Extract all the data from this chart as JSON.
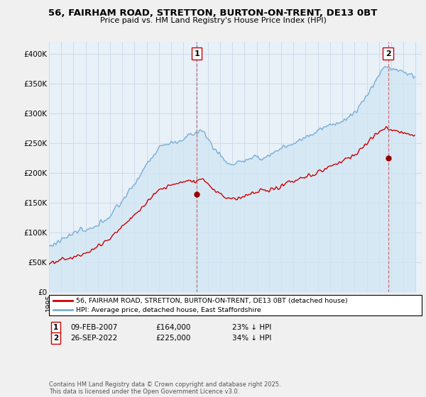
{
  "title": "56, FAIRHAM ROAD, STRETTON, BURTON-ON-TRENT, DE13 0BT",
  "subtitle": "Price paid vs. HM Land Registry's House Price Index (HPI)",
  "ylim": [
    0,
    420000
  ],
  "yticks": [
    0,
    50000,
    100000,
    150000,
    200000,
    250000,
    300000,
    350000,
    400000
  ],
  "ytick_labels": [
    "£0",
    "£50K",
    "£100K",
    "£150K",
    "£200K",
    "£250K",
    "£300K",
    "£350K",
    "£400K"
  ],
  "sale1_year": 2007.1,
  "sale1_date": "09-FEB-2007",
  "sale1_price": "£164,000",
  "sale1_price_val": 164000,
  "sale1_hpi": "23% ↓ HPI",
  "sale2_year": 2022.75,
  "sale2_date": "26-SEP-2022",
  "sale2_price": "£225,000",
  "sale2_price_val": 225000,
  "sale2_hpi": "34% ↓ HPI",
  "line_color_red": "#cc0000",
  "line_color_blue": "#7aafd4",
  "fill_color_blue": "#d0e5f5",
  "marker_color": "#990000",
  "dashed_color": "#cc6666",
  "legend_label_red": "56, FAIRHAM ROAD, STRETTON, BURTON-ON-TRENT, DE13 0BT (detached house)",
  "legend_label_blue": "HPI: Average price, detached house, East Staffordshire",
  "footer": "Contains HM Land Registry data © Crown copyright and database right 2025.\nThis data is licensed under the Open Government Licence v3.0.",
  "background_color": "#f0f0f0",
  "plot_bg": "#e8f0f8"
}
